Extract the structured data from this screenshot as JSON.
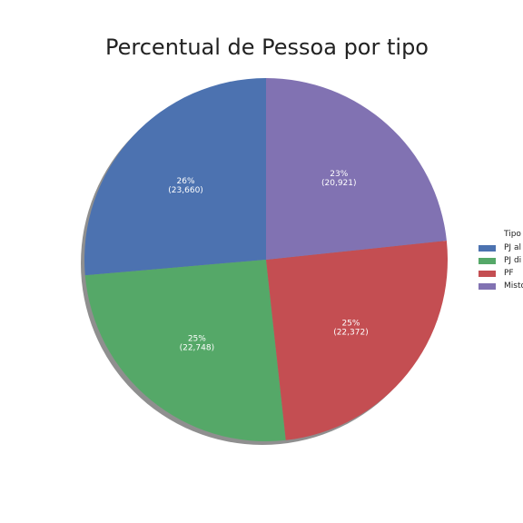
{
  "chart_data": {
    "type": "pie",
    "title": "Percentual de Pessoa por tipo",
    "legend_title": "Tipo",
    "legend_position": "right",
    "slices": [
      {
        "label": "PJ al",
        "value": 23660,
        "percent": "26%",
        "value_label": "(23,660)",
        "color": "#4c72b0"
      },
      {
        "label": "PJ di",
        "value": 22748,
        "percent": "25%",
        "value_label": "(22,748)",
        "color": "#55a868"
      },
      {
        "label": "PF",
        "value": 22372,
        "percent": "25%",
        "value_label": "(22,372)",
        "color": "#c44e52"
      },
      {
        "label": "Misto",
        "value": 20921,
        "percent": "23%",
        "value_label": "(20,921)",
        "color": "#8172b2"
      }
    ],
    "start_angle_deg": 90,
    "direction": "counterclockwise",
    "shadow": true
  }
}
